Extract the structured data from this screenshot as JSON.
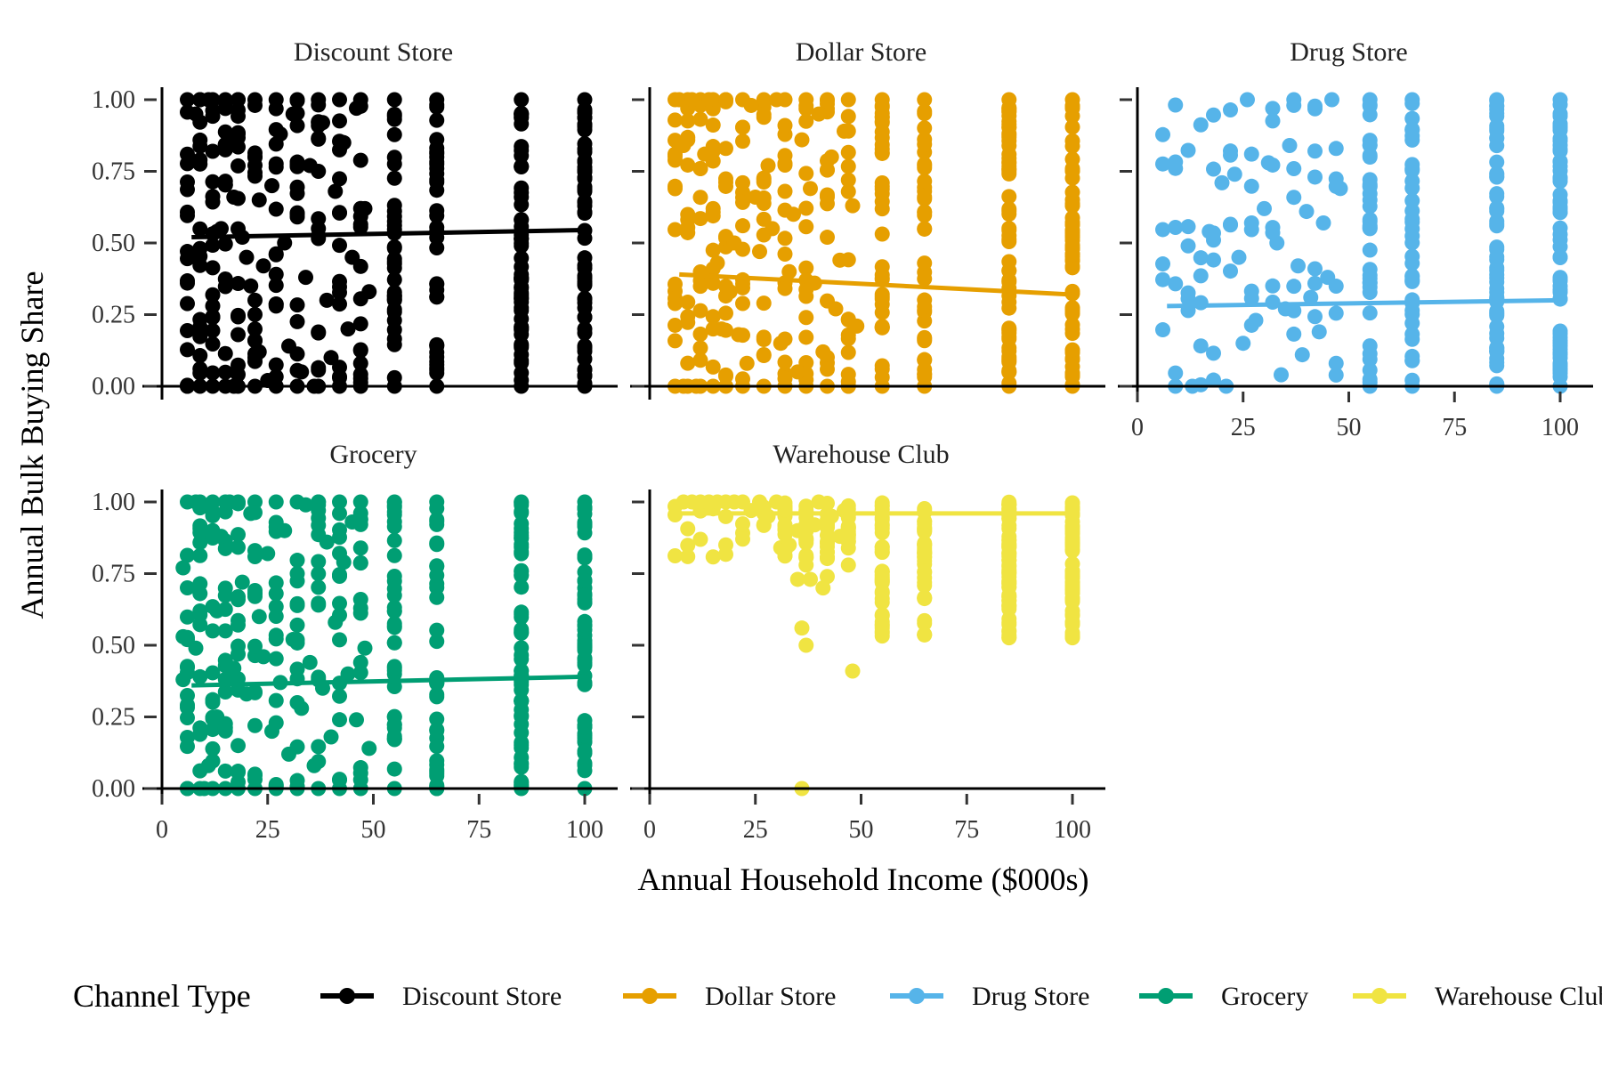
{
  "chart_data": {
    "type": "scatter",
    "xlabel": "Annual Household Income ($000s)",
    "ylabel": "Annual Bulk Buying Share",
    "xlim": [
      0,
      100
    ],
    "ylim": [
      0,
      1
    ],
    "x_ticks": [
      0,
      25,
      50,
      75,
      100
    ],
    "y_ticks": [
      0,
      0.25,
      0.5,
      0.75,
      1
    ],
    "x_tick_labels": [
      "0",
      "25",
      "50",
      "75",
      "100"
    ],
    "y_tick_labels": [
      "0.00",
      "0.25",
      "0.50",
      "0.75",
      "1.00"
    ],
    "grid": false,
    "legend": {
      "title": "Channel Type",
      "position": "bottom",
      "entries": [
        "Discount Store",
        "Dollar Store",
        "Drug Store",
        "Grocery",
        "Warehouse Club"
      ]
    },
    "income_levels": [
      6,
      9,
      12,
      15,
      18,
      22,
      27,
      32,
      37,
      42,
      47,
      55,
      65,
      85,
      100
    ],
    "panels": [
      {
        "name": "Discount Store",
        "color": "#000000",
        "fit_line": {
          "x": [
            7,
            100
          ],
          "y": [
            0.52,
            0.545
          ]
        },
        "points": [
          [
            6,
            0.36
          ],
          [
            6,
            0
          ],
          [
            8,
            0.95
          ],
          [
            9,
            1
          ],
          [
            9,
            0.79
          ],
          [
            11,
            1
          ],
          [
            12,
            0.82
          ],
          [
            12,
            0.24
          ],
          [
            13,
            0.54
          ],
          [
            14,
            0.55
          ],
          [
            15,
            0.99
          ],
          [
            16,
            0.87
          ],
          [
            17,
            0.66
          ],
          [
            17,
            0
          ],
          [
            18,
            0.18
          ],
          [
            18,
            1
          ],
          [
            19,
            0.52
          ],
          [
            20,
            0.45
          ],
          [
            21,
            0.35
          ],
          [
            22,
            0.98
          ],
          [
            23,
            0.12
          ],
          [
            23,
            0.65
          ],
          [
            24,
            0.42
          ],
          [
            25,
            0.02
          ],
          [
            26,
            0.7
          ],
          [
            27,
            0.28
          ],
          [
            28,
            0.88
          ],
          [
            29,
            0.5
          ],
          [
            30,
            0.14
          ],
          [
            31,
            0.95
          ],
          [
            32,
            0.6
          ],
          [
            33,
            0.05
          ],
          [
            34,
            0.38
          ],
          [
            35,
            0.77
          ],
          [
            36,
            0
          ],
          [
            37,
            0.55
          ],
          [
            38,
            0.92
          ],
          [
            39,
            0.3
          ],
          [
            40,
            0.1
          ],
          [
            41,
            0.68
          ],
          [
            43,
            0.85
          ],
          [
            44,
            0.2
          ],
          [
            45,
            0.45
          ],
          [
            46,
            0.97
          ],
          [
            47,
            0.08
          ],
          [
            48,
            0.62
          ],
          [
            49,
            0.33
          ]
        ]
      },
      {
        "name": "Dollar Store",
        "color": "#E69F00",
        "fit_line": {
          "x": [
            7,
            100
          ],
          "y": [
            0.39,
            0.32
          ]
        },
        "points": [
          [
            7,
            1
          ],
          [
            8,
            0.84
          ],
          [
            8,
            0
          ],
          [
            10,
            1
          ],
          [
            11,
            0
          ],
          [
            13,
            0.81
          ],
          [
            14,
            1
          ],
          [
            15,
            0.62
          ],
          [
            16,
            0.43
          ],
          [
            17,
            0.2
          ],
          [
            18,
            1
          ],
          [
            19,
            0.33
          ],
          [
            20,
            0.5
          ],
          [
            21,
            0.18
          ],
          [
            22,
            0.71
          ],
          [
            23,
            0.08
          ],
          [
            24,
            0.98
          ],
          [
            25,
            0.66
          ],
          [
            26,
            0.47
          ],
          [
            27,
            0.29
          ],
          [
            28,
            0.77
          ],
          [
            29,
            0.55
          ],
          [
            30,
            1
          ],
          [
            31,
            0.15
          ],
          [
            32,
            0.91
          ],
          [
            33,
            0.4
          ],
          [
            34,
            0.6
          ],
          [
            35,
            0.05
          ],
          [
            36,
            0.86
          ],
          [
            37,
            0.24
          ],
          [
            38,
            0.69
          ],
          [
            39,
            0.36
          ],
          [
            40,
            0.95
          ],
          [
            41,
            0.12
          ],
          [
            42,
            0.52
          ],
          [
            43,
            0.8
          ],
          [
            44,
            0.27
          ],
          [
            45,
            0.44
          ],
          [
            46,
            0.89
          ],
          [
            47,
            0.0
          ],
          [
            48,
            0.63
          ],
          [
            49,
            0.21
          ]
        ]
      },
      {
        "name": "Drug Store",
        "color": "#56B4E9",
        "fit_line": {
          "x": [
            7,
            100
          ],
          "y": [
            0.28,
            0.3
          ]
        },
        "points": [
          [
            9,
            0
          ],
          [
            13,
            0
          ],
          [
            17,
            0.54
          ],
          [
            18,
            0.51
          ],
          [
            20,
            0.71
          ],
          [
            21,
            0
          ],
          [
            23,
            0.74
          ],
          [
            24,
            0.45
          ],
          [
            25,
            0.15
          ],
          [
            26,
            1
          ],
          [
            27,
            0.57
          ],
          [
            28,
            0.23
          ],
          [
            30,
            0.62
          ],
          [
            31,
            0.78
          ],
          [
            32,
            0.35
          ],
          [
            33,
            0.5
          ],
          [
            34,
            0.04
          ],
          [
            35,
            0.27
          ],
          [
            36,
            0.84
          ],
          [
            37,
            1
          ],
          [
            38,
            0.42
          ],
          [
            39,
            0.11
          ],
          [
            40,
            0.61
          ],
          [
            41,
            0.31
          ],
          [
            42,
            0.73
          ],
          [
            43,
            0.19
          ],
          [
            44,
            0.57
          ],
          [
            45,
            0.38
          ],
          [
            46,
            1
          ],
          [
            47,
            0.08
          ],
          [
            48,
            0.69
          ]
        ]
      },
      {
        "name": "Grocery",
        "color": "#009E73",
        "fit_line": {
          "x": [
            7,
            100
          ],
          "y": [
            0.36,
            0.39
          ]
        },
        "points": [
          [
            5,
            0.77
          ],
          [
            5,
            0.53
          ],
          [
            5,
            0.38
          ],
          [
            6,
            0
          ],
          [
            8,
            1
          ],
          [
            8,
            0.49
          ],
          [
            9,
            0.39
          ],
          [
            10,
            0
          ],
          [
            11,
            0.08
          ],
          [
            12,
            0.31
          ],
          [
            13,
            0.62
          ],
          [
            13,
            0.25
          ],
          [
            14,
            0.88
          ],
          [
            15,
            0.55
          ],
          [
            16,
            1
          ],
          [
            17,
            0.42
          ],
          [
            18,
            0.15
          ],
          [
            19,
            0.72
          ],
          [
            20,
            0.33
          ],
          [
            21,
            0.96
          ],
          [
            22,
            0.05
          ],
          [
            23,
            0.6
          ],
          [
            24,
            0.46
          ],
          [
            25,
            0.82
          ],
          [
            26,
            0.2
          ],
          [
            27,
            0.68
          ],
          [
            28,
            0.37
          ],
          [
            29,
            0.9
          ],
          [
            30,
            0.12
          ],
          [
            31,
            0.52
          ],
          [
            32,
            0.75
          ],
          [
            33,
            0.28
          ],
          [
            34,
            0.99
          ],
          [
            35,
            0.44
          ],
          [
            36,
            0.08
          ],
          [
            37,
            0.64
          ],
          [
            38,
            0.35
          ],
          [
            39,
            0.86
          ],
          [
            40,
            0.18
          ],
          [
            41,
            0.58
          ],
          [
            42,
            0.03
          ],
          [
            43,
            0.79
          ],
          [
            44,
            0.4
          ],
          [
            45,
            0.93
          ],
          [
            46,
            0.24
          ],
          [
            47,
            0.66
          ],
          [
            48,
            0.49
          ],
          [
            49,
            0.14
          ]
        ]
      },
      {
        "name": "Warehouse Club",
        "color": "#F0E442",
        "fit_line": {
          "x": [
            7,
            100
          ],
          "y": [
            0.96,
            0.96
          ]
        },
        "points": [
          [
            8,
            1
          ],
          [
            10,
            1
          ],
          [
            12,
            1
          ],
          [
            14,
            1
          ],
          [
            16,
            1
          ],
          [
            18,
            1
          ],
          [
            20,
            1
          ],
          [
            22,
            1
          ],
          [
            24,
            0.97
          ],
          [
            26,
            1
          ],
          [
            27,
            0.96
          ],
          [
            28,
            0.95
          ],
          [
            30,
            1
          ],
          [
            31,
            0.84
          ],
          [
            32,
            0.92
          ],
          [
            33,
            0.85
          ],
          [
            35,
            0.9
          ],
          [
            35,
            0.73
          ],
          [
            36,
            0.56
          ],
          [
            36,
            0
          ],
          [
            37,
            0.78
          ],
          [
            37,
            0.5
          ],
          [
            38,
            0.73
          ],
          [
            39,
            0.92
          ],
          [
            40,
            1
          ],
          [
            41,
            0.7
          ],
          [
            42,
            0.74
          ],
          [
            43,
            0.95
          ],
          [
            45,
            0.88
          ],
          [
            46,
            0.97
          ],
          [
            47,
            0.78
          ],
          [
            48,
            0.41
          ]
        ]
      }
    ]
  }
}
